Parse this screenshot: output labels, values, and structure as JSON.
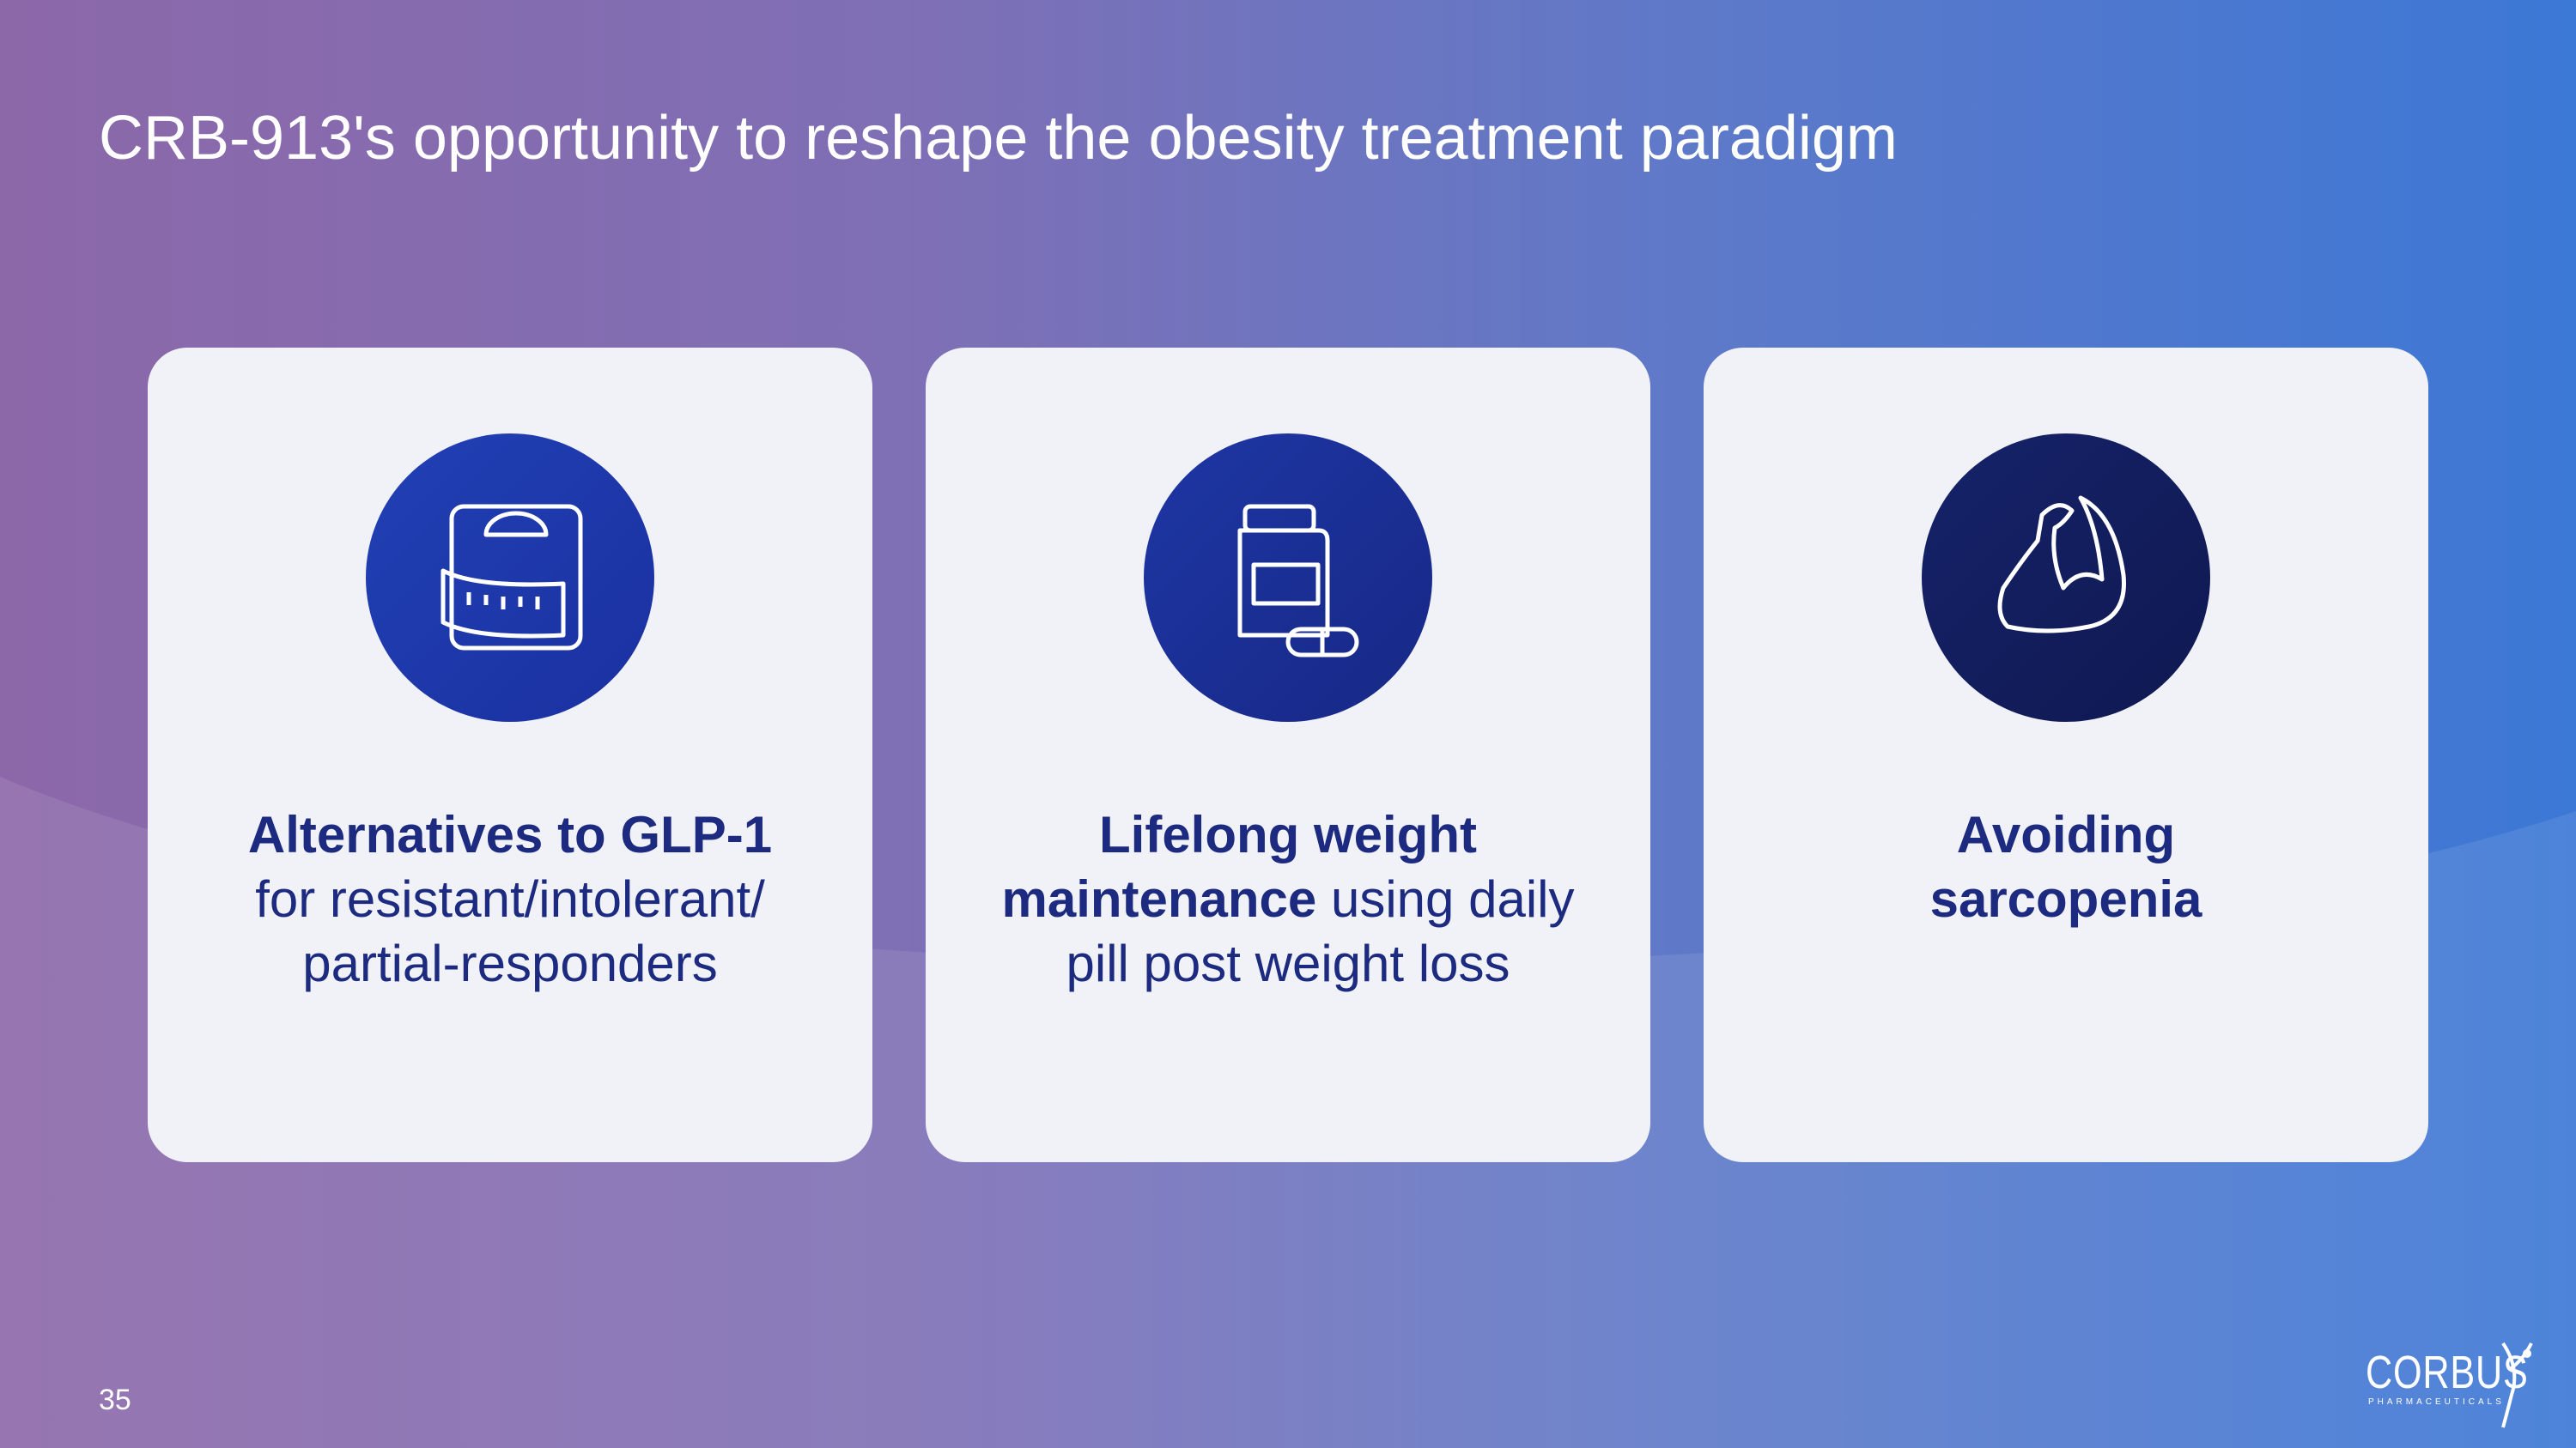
{
  "title": "CRB-913's opportunity to reshape the obesity treatment paradigm",
  "cards": [
    {
      "lines": [
        [
          {
            "text": "Alternatives to GLP-1",
            "bold": true
          }
        ],
        [
          {
            "text": "for resistant/intolerant/",
            "bold": false
          }
        ],
        [
          {
            "text": "partial-responders",
            "bold": false
          }
        ]
      ]
    },
    {
      "lines": [
        [
          {
            "text": "Lifelong weight",
            "bold": true
          }
        ],
        [
          {
            "text": "maintenance",
            "bold": true
          },
          {
            "text": "using daily",
            "bold": false
          }
        ],
        [
          {
            "text": "pill post weight loss",
            "bold": false
          }
        ]
      ]
    },
    {
      "lines": [
        [
          {
            "text": "Avoiding",
            "bold": true
          }
        ],
        [
          {
            "text": "sarcopenia",
            "bold": true
          }
        ]
      ]
    }
  ],
  "page_number": "35",
  "logo": {
    "name": "CORBUS",
    "tagline": "PHARMACEUTICALS"
  }
}
